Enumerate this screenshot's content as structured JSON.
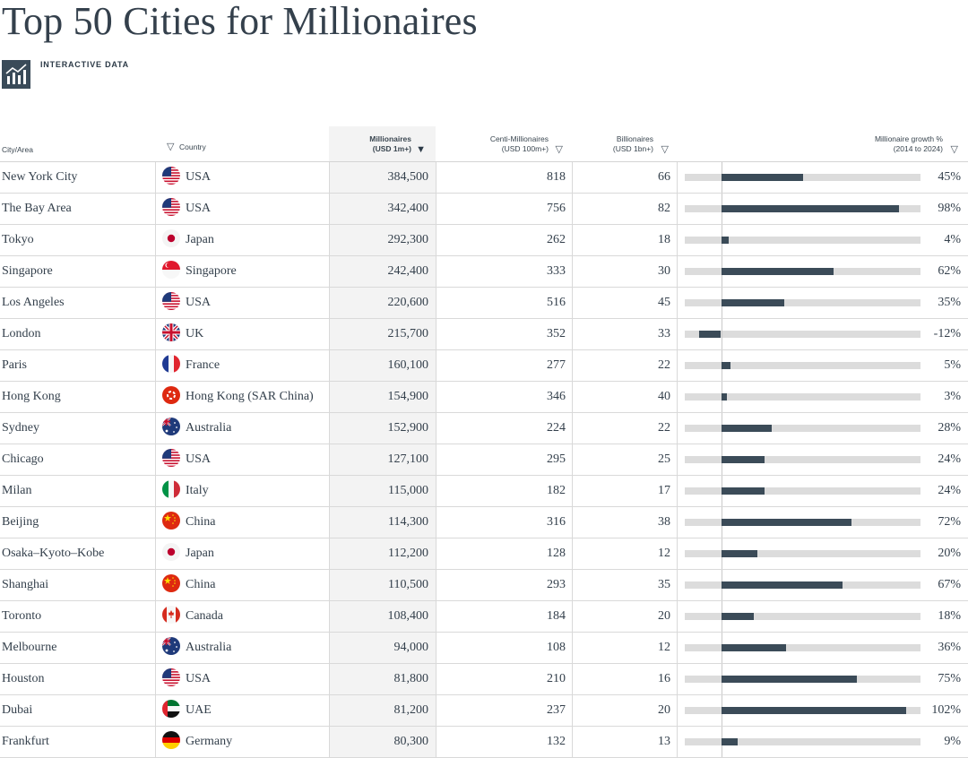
{
  "page": {
    "title": "Top 50 Cities for Millionaires",
    "badge_label": "INTERACTIVE DATA",
    "badge_icon": "bar-chart-icon"
  },
  "columns": {
    "city": "City/Area",
    "country": "Country",
    "millionaires": [
      "Millionaires",
      "(USD 1m+)"
    ],
    "centi": [
      "Centi-Millionaires",
      "(USD 100m+)"
    ],
    "billionaires": [
      "Billionaires",
      "(USD 1bn+)"
    ],
    "growth": [
      "Millionaire growth %",
      "(2014 to 2024)"
    ]
  },
  "sort": {
    "active_column": "millionaires",
    "direction": "desc",
    "active_icon": "▼",
    "inactive_icon": "▽"
  },
  "colors": {
    "bar": "#3b4b58",
    "track": "#dcdcdc",
    "sorted_column_bg": "#f3f3f3"
  },
  "growth_scale": {
    "min": -20,
    "max": 110
  },
  "rows": [
    {
      "city": "New York City",
      "country": "USA",
      "flag": "us",
      "millionaires": "384,500",
      "centi": "818",
      "billionaires": "66",
      "growth_pct": 45,
      "growth_label": "45%"
    },
    {
      "city": "The Bay Area",
      "country": "USA",
      "flag": "us",
      "millionaires": "342,400",
      "centi": "756",
      "billionaires": "82",
      "growth_pct": 98,
      "growth_label": "98%"
    },
    {
      "city": "Tokyo",
      "country": "Japan",
      "flag": "jp",
      "millionaires": "292,300",
      "centi": "262",
      "billionaires": "18",
      "growth_pct": 4,
      "growth_label": "4%"
    },
    {
      "city": "Singapore",
      "country": "Singapore",
      "flag": "sg",
      "millionaires": "242,400",
      "centi": "333",
      "billionaires": "30",
      "growth_pct": 62,
      "growth_label": "62%"
    },
    {
      "city": "Los Angeles",
      "country": "USA",
      "flag": "us",
      "millionaires": "220,600",
      "centi": "516",
      "billionaires": "45",
      "growth_pct": 35,
      "growth_label": "35%"
    },
    {
      "city": "London",
      "country": "UK",
      "flag": "uk",
      "millionaires": "215,700",
      "centi": "352",
      "billionaires": "33",
      "growth_pct": -12,
      "growth_label": "-12%"
    },
    {
      "city": "Paris",
      "country": "France",
      "flag": "fr",
      "millionaires": "160,100",
      "centi": "277",
      "billionaires": "22",
      "growth_pct": 5,
      "growth_label": "5%"
    },
    {
      "city": "Hong Kong",
      "country": "Hong Kong (SAR China)",
      "flag": "hk",
      "millionaires": "154,900",
      "centi": "346",
      "billionaires": "40",
      "growth_pct": 3,
      "growth_label": "3%"
    },
    {
      "city": "Sydney",
      "country": "Australia",
      "flag": "au",
      "millionaires": "152,900",
      "centi": "224",
      "billionaires": "22",
      "growth_pct": 28,
      "growth_label": "28%"
    },
    {
      "city": "Chicago",
      "country": "USA",
      "flag": "us",
      "millionaires": "127,100",
      "centi": "295",
      "billionaires": "25",
      "growth_pct": 24,
      "growth_label": "24%"
    },
    {
      "city": "Milan",
      "country": "Italy",
      "flag": "it",
      "millionaires": "115,000",
      "centi": "182",
      "billionaires": "17",
      "growth_pct": 24,
      "growth_label": "24%"
    },
    {
      "city": "Beijing",
      "country": "China",
      "flag": "cn",
      "millionaires": "114,300",
      "centi": "316",
      "billionaires": "38",
      "growth_pct": 72,
      "growth_label": "72%"
    },
    {
      "city": "Osaka–Kyoto–Kobe",
      "country": "Japan",
      "flag": "jp",
      "millionaires": "112,200",
      "centi": "128",
      "billionaires": "12",
      "growth_pct": 20,
      "growth_label": "20%"
    },
    {
      "city": "Shanghai",
      "country": "China",
      "flag": "cn",
      "millionaires": "110,500",
      "centi": "293",
      "billionaires": "35",
      "growth_pct": 67,
      "growth_label": "67%"
    },
    {
      "city": "Toronto",
      "country": "Canada",
      "flag": "ca",
      "millionaires": "108,400",
      "centi": "184",
      "billionaires": "20",
      "growth_pct": 18,
      "growth_label": "18%"
    },
    {
      "city": "Melbourne",
      "country": "Australia",
      "flag": "au",
      "millionaires": "94,000",
      "centi": "108",
      "billionaires": "12",
      "growth_pct": 36,
      "growth_label": "36%"
    },
    {
      "city": "Houston",
      "country": "USA",
      "flag": "us",
      "millionaires": "81,800",
      "centi": "210",
      "billionaires": "16",
      "growth_pct": 75,
      "growth_label": "75%"
    },
    {
      "city": "Dubai",
      "country": "UAE",
      "flag": "ae",
      "millionaires": "81,200",
      "centi": "237",
      "billionaires": "20",
      "growth_pct": 102,
      "growth_label": "102%"
    },
    {
      "city": "Frankfurt",
      "country": "Germany",
      "flag": "de",
      "millionaires": "80,300",
      "centi": "132",
      "billionaires": "13",
      "growth_pct": 9,
      "growth_label": "9%"
    }
  ]
}
